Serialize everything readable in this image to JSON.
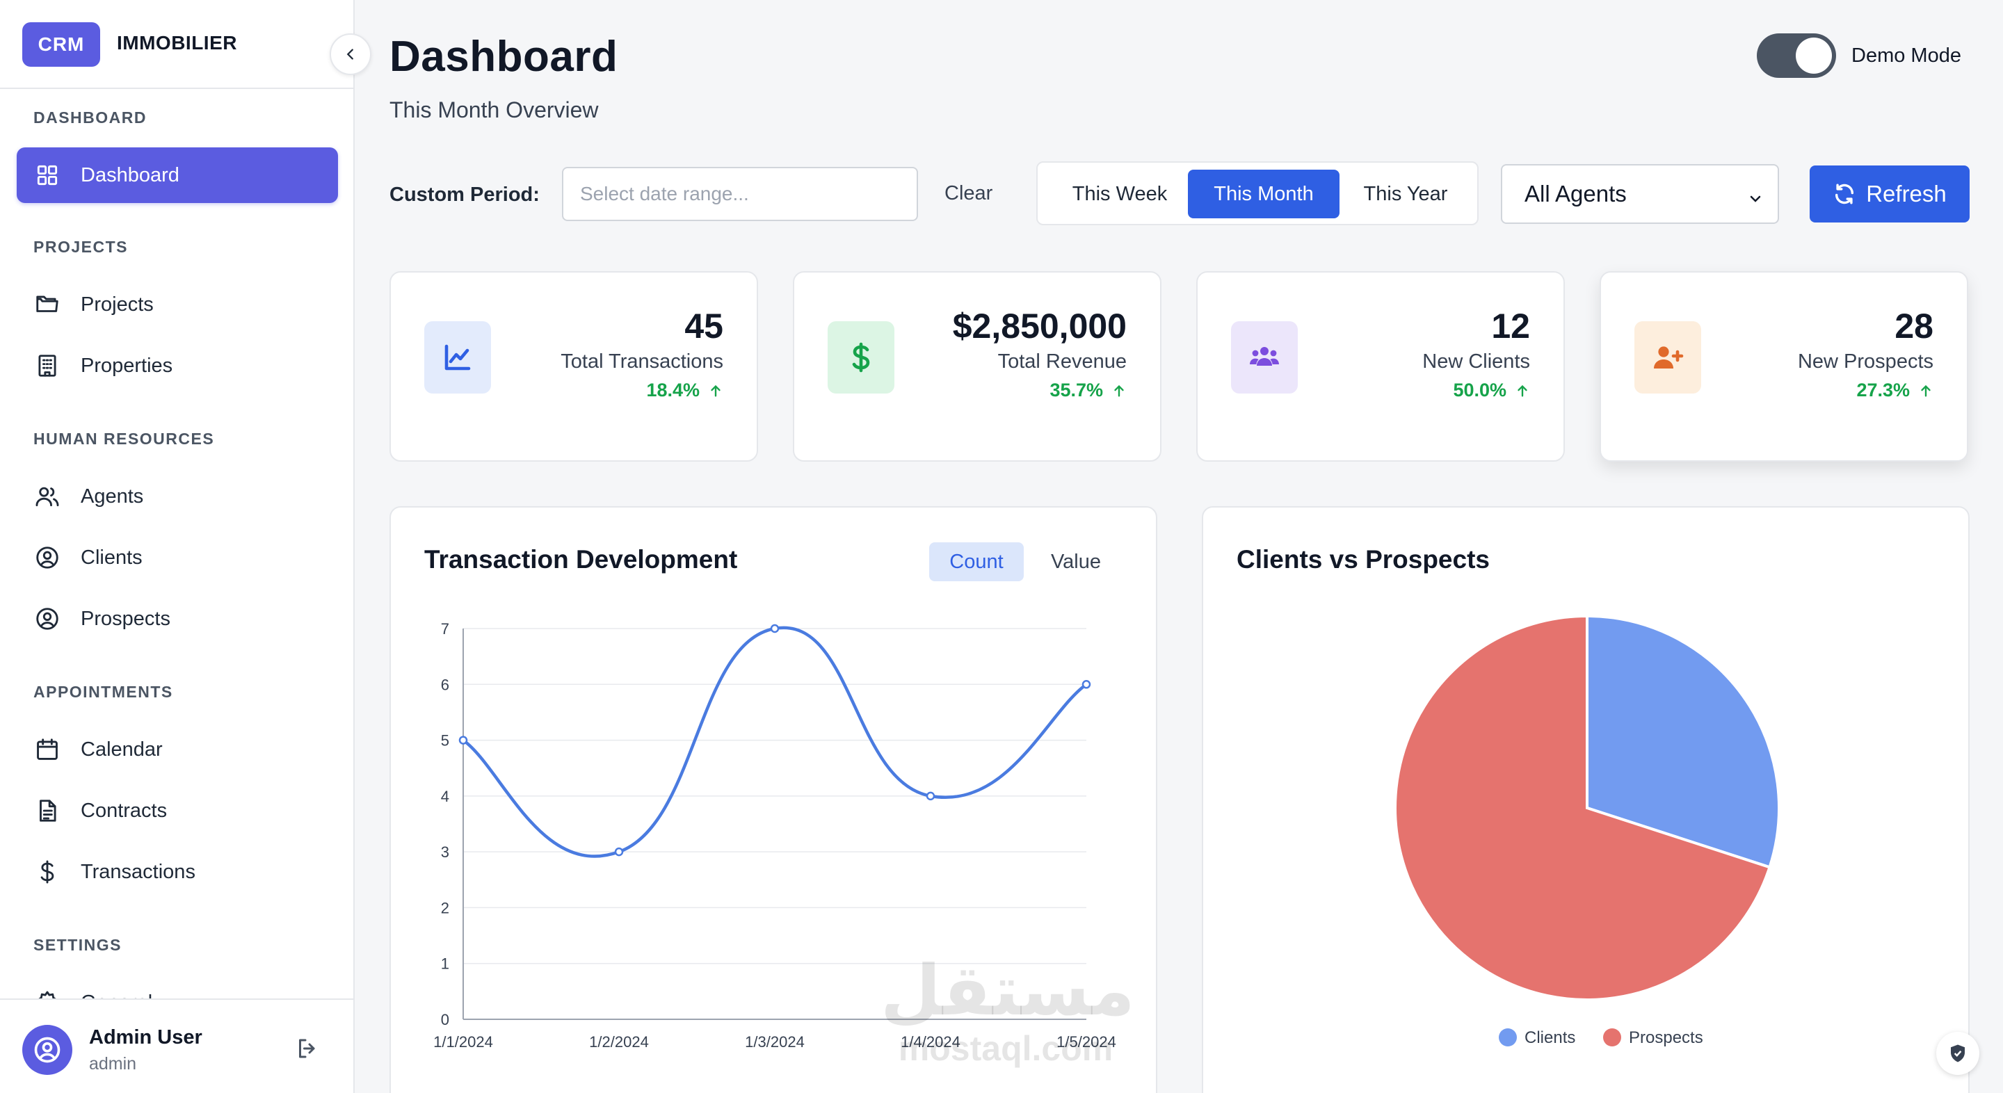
{
  "brand": {
    "badge": "CRM",
    "name": "IMMOBILIER"
  },
  "sidebar": {
    "sections": [
      {
        "title": "DASHBOARD",
        "items": [
          {
            "label": "Dashboard",
            "icon": "grid-icon",
            "active": true
          }
        ]
      },
      {
        "title": "PROJECTS",
        "items": [
          {
            "label": "Projects",
            "icon": "folder-icon"
          },
          {
            "label": "Properties",
            "icon": "building-icon"
          }
        ]
      },
      {
        "title": "HUMAN RESOURCES",
        "items": [
          {
            "label": "Agents",
            "icon": "users-icon"
          },
          {
            "label": "Clients",
            "icon": "user-circle-icon"
          },
          {
            "label": "Prospects",
            "icon": "user-circle-icon"
          }
        ]
      },
      {
        "title": "APPOINTMENTS",
        "items": [
          {
            "label": "Calendar",
            "icon": "calendar-icon"
          },
          {
            "label": "Contracts",
            "icon": "document-icon"
          },
          {
            "label": "Transactions",
            "icon": "dollar-icon"
          }
        ]
      },
      {
        "title": "SETTINGS",
        "items": [
          {
            "label": "General",
            "icon": "gear-icon"
          }
        ]
      }
    ],
    "user": {
      "name": "Admin User",
      "role": "admin"
    }
  },
  "header": {
    "title": "Dashboard",
    "subtitle": "This Month Overview",
    "demo_mode_label": "Demo Mode",
    "demo_mode_on": true
  },
  "filters": {
    "custom_period_label": "Custom Period:",
    "date_placeholder": "Select date range...",
    "clear_label": "Clear",
    "periods": [
      "This Week",
      "This Month",
      "This Year"
    ],
    "active_period": "This Month",
    "agent_select": "All Agents",
    "refresh_label": "Refresh"
  },
  "stats": [
    {
      "value": "45",
      "label": "Total Transactions",
      "change": "18.4%",
      "icon": "chart-line-icon",
      "color": "#2f5fe3",
      "bg": "#e3ebfc"
    },
    {
      "value": "$2,850,000",
      "label": "Total Revenue",
      "change": "35.7%",
      "icon": "dollar-icon",
      "color": "#16a34a",
      "bg": "#dcf5e4"
    },
    {
      "value": "12",
      "label": "New Clients",
      "change": "50.0%",
      "icon": "users-icon",
      "color": "#7c4dde",
      "bg": "#ece6fb"
    },
    {
      "value": "28",
      "label": "New Prospects",
      "change": "27.3%",
      "icon": "user-plus-icon",
      "color": "#e06a2b",
      "bg": "#fdeedd"
    }
  ],
  "transaction_panel": {
    "title": "Transaction Development",
    "toggles": [
      "Count",
      "Value"
    ],
    "active_toggle": "Count"
  },
  "pie_panel": {
    "title": "Clients vs Prospects"
  },
  "watermark": {
    "arabic": "مستقل",
    "latin": "mostaql.com"
  },
  "chart_data": [
    {
      "type": "line",
      "title": "Transaction Development",
      "x": [
        "1/1/2024",
        "1/2/2024",
        "1/3/2024",
        "1/4/2024",
        "1/5/2024"
      ],
      "series": [
        {
          "values": [
            5,
            3,
            7,
            4,
            6
          ],
          "color": "#4a7be0"
        }
      ],
      "ylim": [
        0,
        7
      ],
      "yticks": [
        0,
        1,
        2,
        3,
        4,
        5,
        6,
        7
      ],
      "grid": true,
      "curve": "smooth"
    },
    {
      "type": "pie",
      "title": "Clients vs Prospects",
      "categories": [
        "Clients",
        "Prospects"
      ],
      "values": [
        12,
        28
      ],
      "colors": [
        "#729bf0",
        "#e5736e"
      ],
      "legend": "bottom"
    }
  ]
}
